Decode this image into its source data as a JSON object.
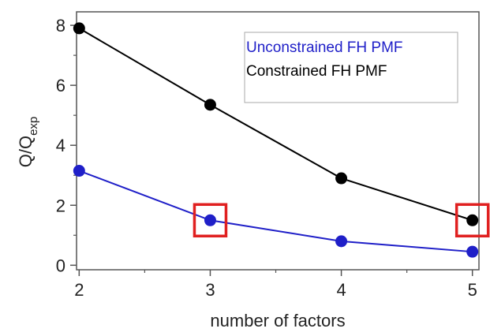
{
  "chart_data": {
    "type": "line",
    "title": "",
    "xlabel": "number of factors",
    "ylabel_main": "Q/Q",
    "ylabel_sub": "exp",
    "x": [
      2,
      3,
      4,
      5
    ],
    "xticks": [
      "2",
      "3",
      "4",
      "5"
    ],
    "xlim": [
      1.98,
      5.05
    ],
    "ylim": [
      -0.15,
      8.45
    ],
    "yticks": [
      "0",
      "2",
      "4",
      "6",
      "8"
    ],
    "ytick_values": [
      0,
      2,
      4,
      6,
      8
    ],
    "grid": false,
    "legend_position": "top-right",
    "series": [
      {
        "name": "Unconstrained FH PMF",
        "color": "#1f1fc8",
        "values": [
          3.15,
          1.5,
          0.8,
          0.45
        ]
      },
      {
        "name": "Constrained FH PMF",
        "color": "#000000",
        "values": [
          7.9,
          5.35,
          2.9,
          1.5
        ]
      }
    ],
    "highlight_color": "#e02020",
    "highlights": [
      {
        "series": 0,
        "x": 3
      },
      {
        "series": 1,
        "x": 5
      }
    ]
  }
}
